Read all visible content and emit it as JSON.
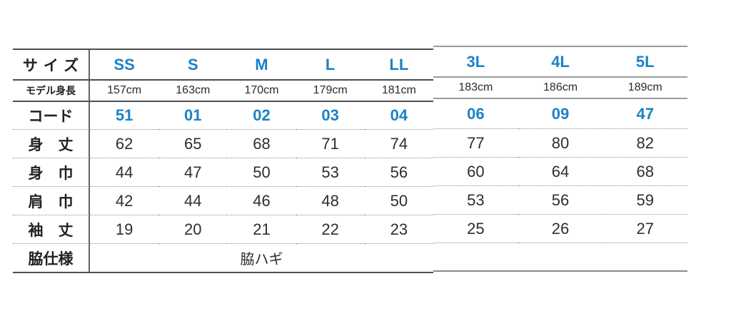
{
  "colors": {
    "accent_blue": "#1a82c6",
    "text_dark": "#2b2b2b",
    "rule_dark": "#4d4d4d",
    "rule_light": "#9b9b9b"
  },
  "chart_data": {
    "type": "table",
    "title": "apparel size spec chart",
    "corner_label": "サイズ",
    "size_headers": [
      "SS",
      "S",
      "M",
      "L",
      "LL",
      "3L",
      "4L",
      "5L"
    ],
    "model_height_label": "モデル身長",
    "model_heights": [
      "157cm",
      "163cm",
      "170cm",
      "179cm",
      "181cm",
      "183cm",
      "186cm",
      "189cm"
    ],
    "rows": [
      {
        "label": "コード",
        "accent": true,
        "values": [
          "51",
          "01",
          "02",
          "03",
          "04",
          "06",
          "09",
          "47"
        ]
      },
      {
        "label": "身　丈",
        "accent": false,
        "values": [
          "62",
          "65",
          "68",
          "71",
          "74",
          "77",
          "80",
          "82"
        ]
      },
      {
        "label": "身　巾",
        "accent": false,
        "values": [
          "44",
          "47",
          "50",
          "53",
          "56",
          "60",
          "64",
          "68"
        ]
      },
      {
        "label": "肩　巾",
        "accent": false,
        "values": [
          "42",
          "44",
          "46",
          "48",
          "50",
          "53",
          "56",
          "59"
        ]
      },
      {
        "label": "袖　丈",
        "accent": false,
        "values": [
          "19",
          "20",
          "21",
          "22",
          "23",
          "25",
          "26",
          "27"
        ]
      }
    ],
    "side_seam_label": "脇仕様",
    "side_seam_value": "脇ハギ"
  }
}
